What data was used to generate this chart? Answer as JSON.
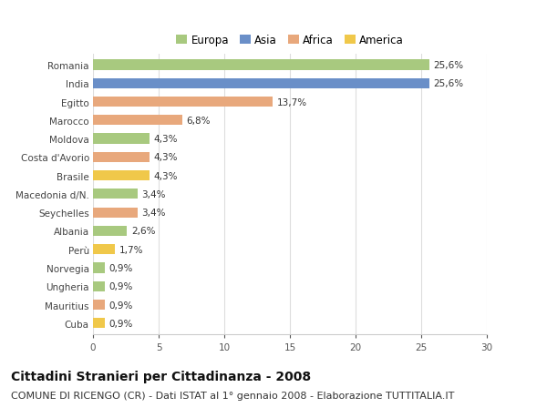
{
  "categories": [
    "Romania",
    "India",
    "Egitto",
    "Marocco",
    "Moldova",
    "Costa d'Avorio",
    "Brasile",
    "Macedonia d/N.",
    "Seychelles",
    "Albania",
    "Perù",
    "Norvegia",
    "Ungheria",
    "Mauritius",
    "Cuba"
  ],
  "values": [
    25.6,
    25.6,
    13.7,
    6.8,
    4.3,
    4.3,
    4.3,
    3.4,
    3.4,
    2.6,
    1.7,
    0.9,
    0.9,
    0.9,
    0.9
  ],
  "labels": [
    "25,6%",
    "25,6%",
    "13,7%",
    "6,8%",
    "4,3%",
    "4,3%",
    "4,3%",
    "3,4%",
    "3,4%",
    "2,6%",
    "1,7%",
    "0,9%",
    "0,9%",
    "0,9%",
    "0,9%"
  ],
  "colors": [
    "#a8c97f",
    "#6a8fc8",
    "#e8a87c",
    "#e8a87c",
    "#a8c97f",
    "#e8a87c",
    "#f0c84a",
    "#a8c97f",
    "#e8a87c",
    "#a8c97f",
    "#f0c84a",
    "#a8c97f",
    "#a8c97f",
    "#e8a87c",
    "#f0c84a"
  ],
  "legend_labels": [
    "Europa",
    "Asia",
    "Africa",
    "America"
  ],
  "legend_colors": [
    "#a8c97f",
    "#6a8fc8",
    "#e8a87c",
    "#f0c84a"
  ],
  "title": "Cittadini Stranieri per Cittadinanza - 2008",
  "subtitle": "COMUNE DI RICENGO (CR) - Dati ISTAT al 1° gennaio 2008 - Elaborazione TUTTITALIA.IT",
  "xlim": [
    0,
    30
  ],
  "xticks": [
    0,
    5,
    10,
    15,
    20,
    25,
    30
  ],
  "background_color": "#ffffff",
  "grid_color": "#dddddd",
  "bar_height": 0.55,
  "title_fontsize": 10,
  "subtitle_fontsize": 8,
  "label_fontsize": 7.5,
  "tick_fontsize": 7.5,
  "legend_fontsize": 8.5
}
